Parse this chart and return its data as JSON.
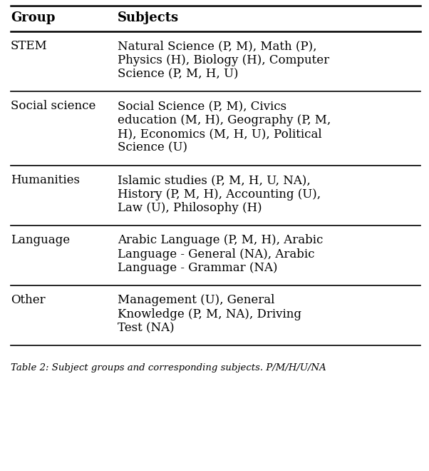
{
  "headers": [
    "Group",
    "Subjects"
  ],
  "rows": [
    {
      "group": "STEM",
      "subjects": "Natural Science (P, M), Math (P),\nPhysics (H), Biology (H), Computer\nScience (P, M, H, U)"
    },
    {
      "group": "Social science",
      "subjects": "Social Science (P, M), Civics\neducation (M, H), Geography (P, M,\nH), Economics (M, H, U), Political\nScience (U)"
    },
    {
      "group": "Humanities",
      "subjects": "Islamic studies (P, M, H, U, NA),\nHistory (P, M, H), Accounting (U),\nLaw (U), Philosophy (H)"
    },
    {
      "group": "Language",
      "subjects": "Arabic Language (P, M, H), Arabic\nLanguage - General (NA), Arabic\nLanguage - Grammar (NA)"
    },
    {
      "group": "Other",
      "subjects": "Management (U), General\nKnowledge (P, M, NA), Driving\nTest (NA)"
    }
  ],
  "header_fontsize": 13,
  "body_fontsize": 12,
  "line_color": "#000000",
  "bg_color": "#ffffff",
  "text_color": "#000000",
  "caption": "Table 2: Subject groups and corresponding subjects. P/M/H/U/NA"
}
